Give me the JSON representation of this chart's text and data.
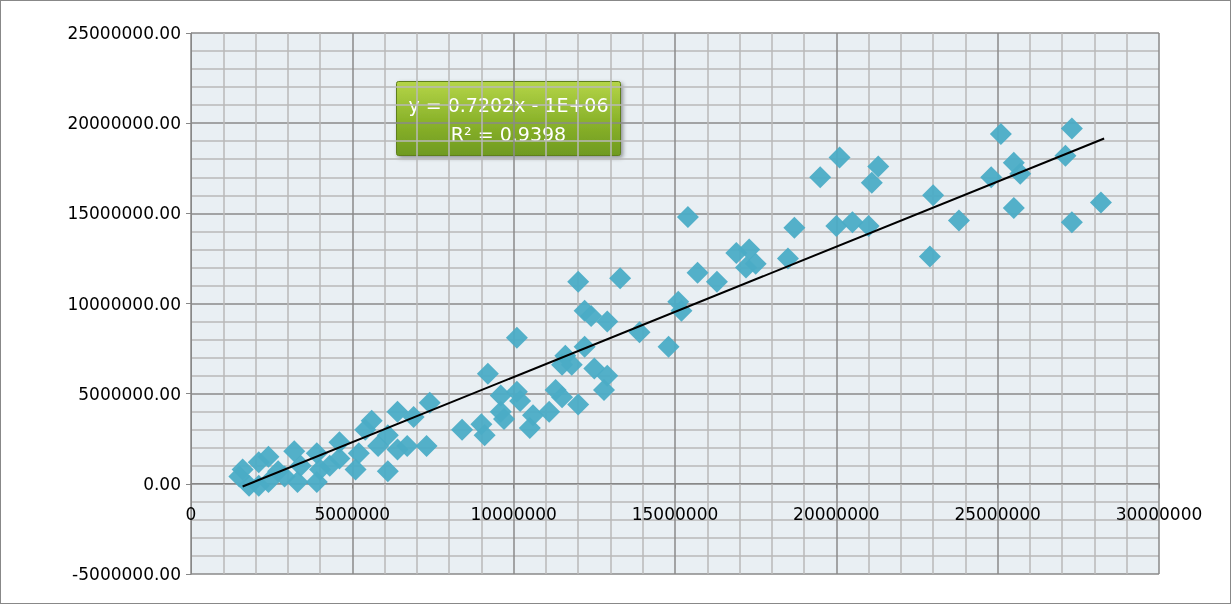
{
  "chart_data": {
    "type": "scatter",
    "annotations": [
      "y = 0.7202x - 1E+06",
      "R² = 0.9398"
    ],
    "xlim": [
      0,
      30000000
    ],
    "xticks": [
      0,
      5000000,
      10000000,
      15000000,
      20000000,
      25000000,
      30000000
    ],
    "ylim": [
      -5000000,
      25000000
    ],
    "yticks": [
      {
        "value": -5000000,
        "label": "-5000000.00"
      },
      {
        "value": 0,
        "label": "0.00"
      },
      {
        "value": 5000000,
        "label": "5000000.00"
      },
      {
        "value": 10000000,
        "label": "10000000.00"
      },
      {
        "value": 15000000,
        "label": "15000000.00"
      },
      {
        "value": 20000000,
        "label": "20000000.00"
      },
      {
        "value": 25000000,
        "label": "25000000.00"
      }
    ],
    "grid": true,
    "marker": "diamond",
    "series": [
      {
        "color": "#4bacc6",
        "x": [
          27300000,
          25100000,
          27100000,
          25500000,
          25700000,
          24800000,
          23000000,
          23800000,
          25500000,
          27300000,
          28200000,
          22900000,
          21300000,
          21100000,
          20100000,
          19500000,
          20000000,
          20500000,
          21000000,
          18700000,
          18500000,
          15400000,
          16900000,
          17300000,
          17500000,
          17200000,
          15700000,
          16300000,
          15100000,
          15200000,
          14800000,
          13900000,
          12000000,
          13300000,
          12200000,
          12400000,
          12900000,
          10100000,
          9200000,
          12200000,
          11600000,
          11800000,
          11500000,
          12500000,
          12900000,
          12800000,
          11300000,
          11500000,
          12000000,
          9600000,
          10100000,
          10200000,
          9600000,
          9700000,
          10600000,
          11100000,
          10500000,
          8400000,
          9000000,
          9100000,
          7400000,
          6400000,
          6900000,
          5600000,
          5400000,
          6100000,
          7300000,
          6700000,
          6400000,
          6100000,
          5800000,
          4600000,
          5200000,
          4600000,
          4300000,
          3900000,
          3200000,
          3400000,
          3900000,
          3300000,
          2400000,
          2100000,
          2700000,
          2400000,
          1600000,
          1500000,
          2100000,
          1800000,
          4000000,
          5100000,
          2900000
        ],
        "values": [
          19700000,
          19400000,
          18200000,
          17800000,
          17200000,
          17000000,
          16000000,
          14600000,
          15300000,
          14500000,
          15600000,
          12600000,
          17600000,
          16700000,
          18100000,
          17000000,
          14300000,
          14500000,
          14300000,
          14200000,
          12500000,
          14800000,
          12800000,
          13000000,
          12200000,
          12000000,
          11700000,
          11200000,
          10100000,
          9600000,
          7600000,
          8400000,
          11200000,
          11400000,
          9600000,
          9300000,
          9000000,
          8100000,
          6100000,
          7600000,
          7100000,
          6600000,
          6600000,
          6400000,
          6000000,
          5200000,
          5200000,
          4800000,
          4400000,
          4900000,
          5100000,
          4600000,
          4000000,
          3600000,
          3800000,
          4000000,
          3100000,
          3000000,
          3300000,
          2700000,
          4500000,
          4000000,
          3700000,
          3500000,
          3000000,
          2700000,
          2100000,
          2100000,
          1900000,
          700000,
          2100000,
          2300000,
          1700000,
          1400000,
          1000000,
          1700000,
          1800000,
          1000000,
          100000,
          100000,
          1500000,
          1200000,
          700000,
          100000,
          800000,
          400000,
          -100000,
          -100000,
          800000,
          800000,
          400000
        ]
      },
      {
        "type": "line",
        "color": "#000000",
        "marker": "none",
        "x": [
          1600000,
          28300000
        ],
        "values": [
          -150000,
          19150000
        ]
      }
    ]
  }
}
